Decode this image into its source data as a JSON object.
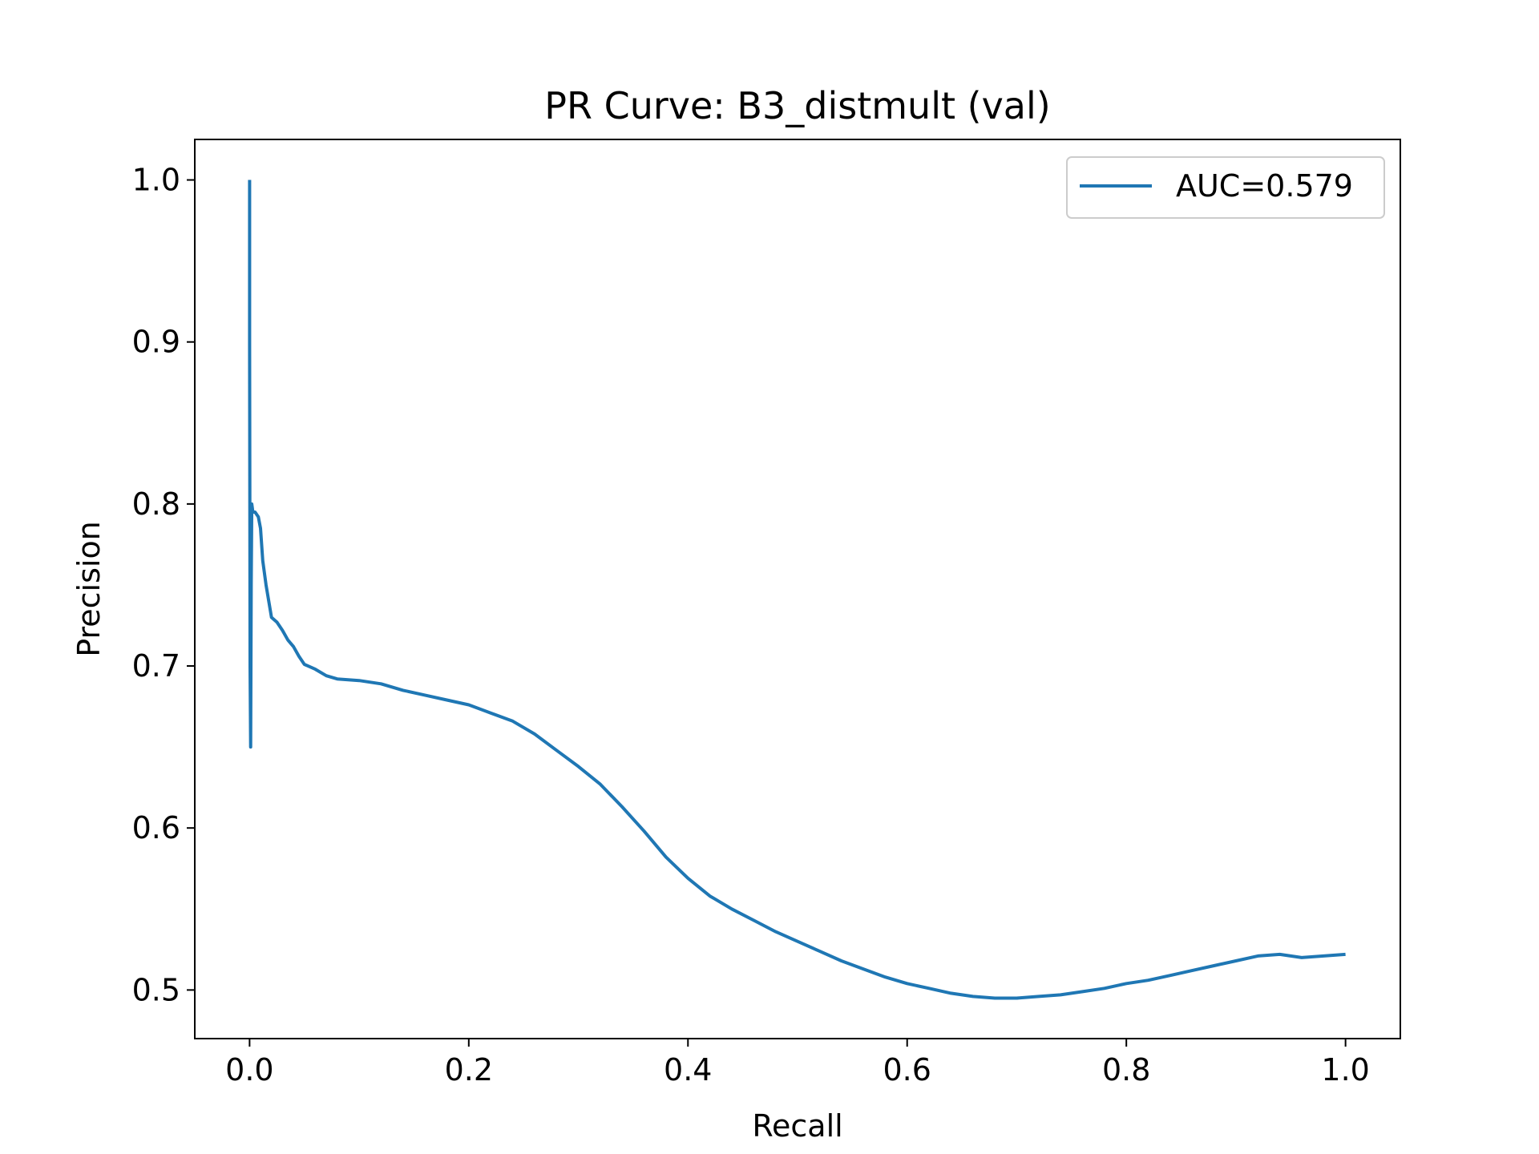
{
  "chart_data": {
    "type": "line",
    "title": "PR Curve: B3_distmult (val)",
    "xlabel": "Recall",
    "ylabel": "Precision",
    "xlim": [
      -0.05,
      1.05
    ],
    "ylim": [
      0.47,
      1.025
    ],
    "xticks": [
      "0.0",
      "0.2",
      "0.4",
      "0.6",
      "0.8",
      "1.0"
    ],
    "yticks": [
      "0.5",
      "0.6",
      "0.7",
      "0.8",
      "0.9",
      "1.0"
    ],
    "grid": false,
    "legend_position": "upper right",
    "color": "#1f77b4",
    "series": [
      {
        "name": "AUC=0.579",
        "x": [
          0.0,
          0.0,
          0.0005,
          0.001,
          0.0015,
          0.002,
          0.003,
          0.005,
          0.008,
          0.01,
          0.012,
          0.015,
          0.02,
          0.025,
          0.03,
          0.035,
          0.04,
          0.045,
          0.05,
          0.06,
          0.07,
          0.08,
          0.1,
          0.12,
          0.14,
          0.16,
          0.18,
          0.2,
          0.22,
          0.24,
          0.26,
          0.28,
          0.3,
          0.32,
          0.34,
          0.36,
          0.38,
          0.4,
          0.42,
          0.44,
          0.46,
          0.48,
          0.5,
          0.52,
          0.54,
          0.56,
          0.58,
          0.6,
          0.62,
          0.64,
          0.66,
          0.68,
          0.7,
          0.72,
          0.74,
          0.76,
          0.78,
          0.8,
          0.82,
          0.84,
          0.86,
          0.88,
          0.9,
          0.92,
          0.94,
          0.96,
          0.98,
          1.0
        ],
        "y": [
          1.0,
          0.9,
          0.7,
          0.65,
          0.75,
          0.8,
          0.795,
          0.795,
          0.792,
          0.785,
          0.765,
          0.75,
          0.73,
          0.727,
          0.722,
          0.716,
          0.712,
          0.706,
          0.701,
          0.698,
          0.694,
          0.692,
          0.691,
          0.689,
          0.685,
          0.682,
          0.679,
          0.676,
          0.671,
          0.666,
          0.658,
          0.648,
          0.638,
          0.627,
          0.613,
          0.598,
          0.582,
          0.569,
          0.558,
          0.55,
          0.543,
          0.536,
          0.53,
          0.524,
          0.518,
          0.513,
          0.508,
          0.504,
          0.501,
          0.498,
          0.496,
          0.495,
          0.495,
          0.496,
          0.497,
          0.499,
          0.501,
          0.504,
          0.506,
          0.509,
          0.512,
          0.515,
          0.518,
          0.521,
          0.522,
          0.52,
          0.521,
          0.522
        ]
      }
    ]
  }
}
